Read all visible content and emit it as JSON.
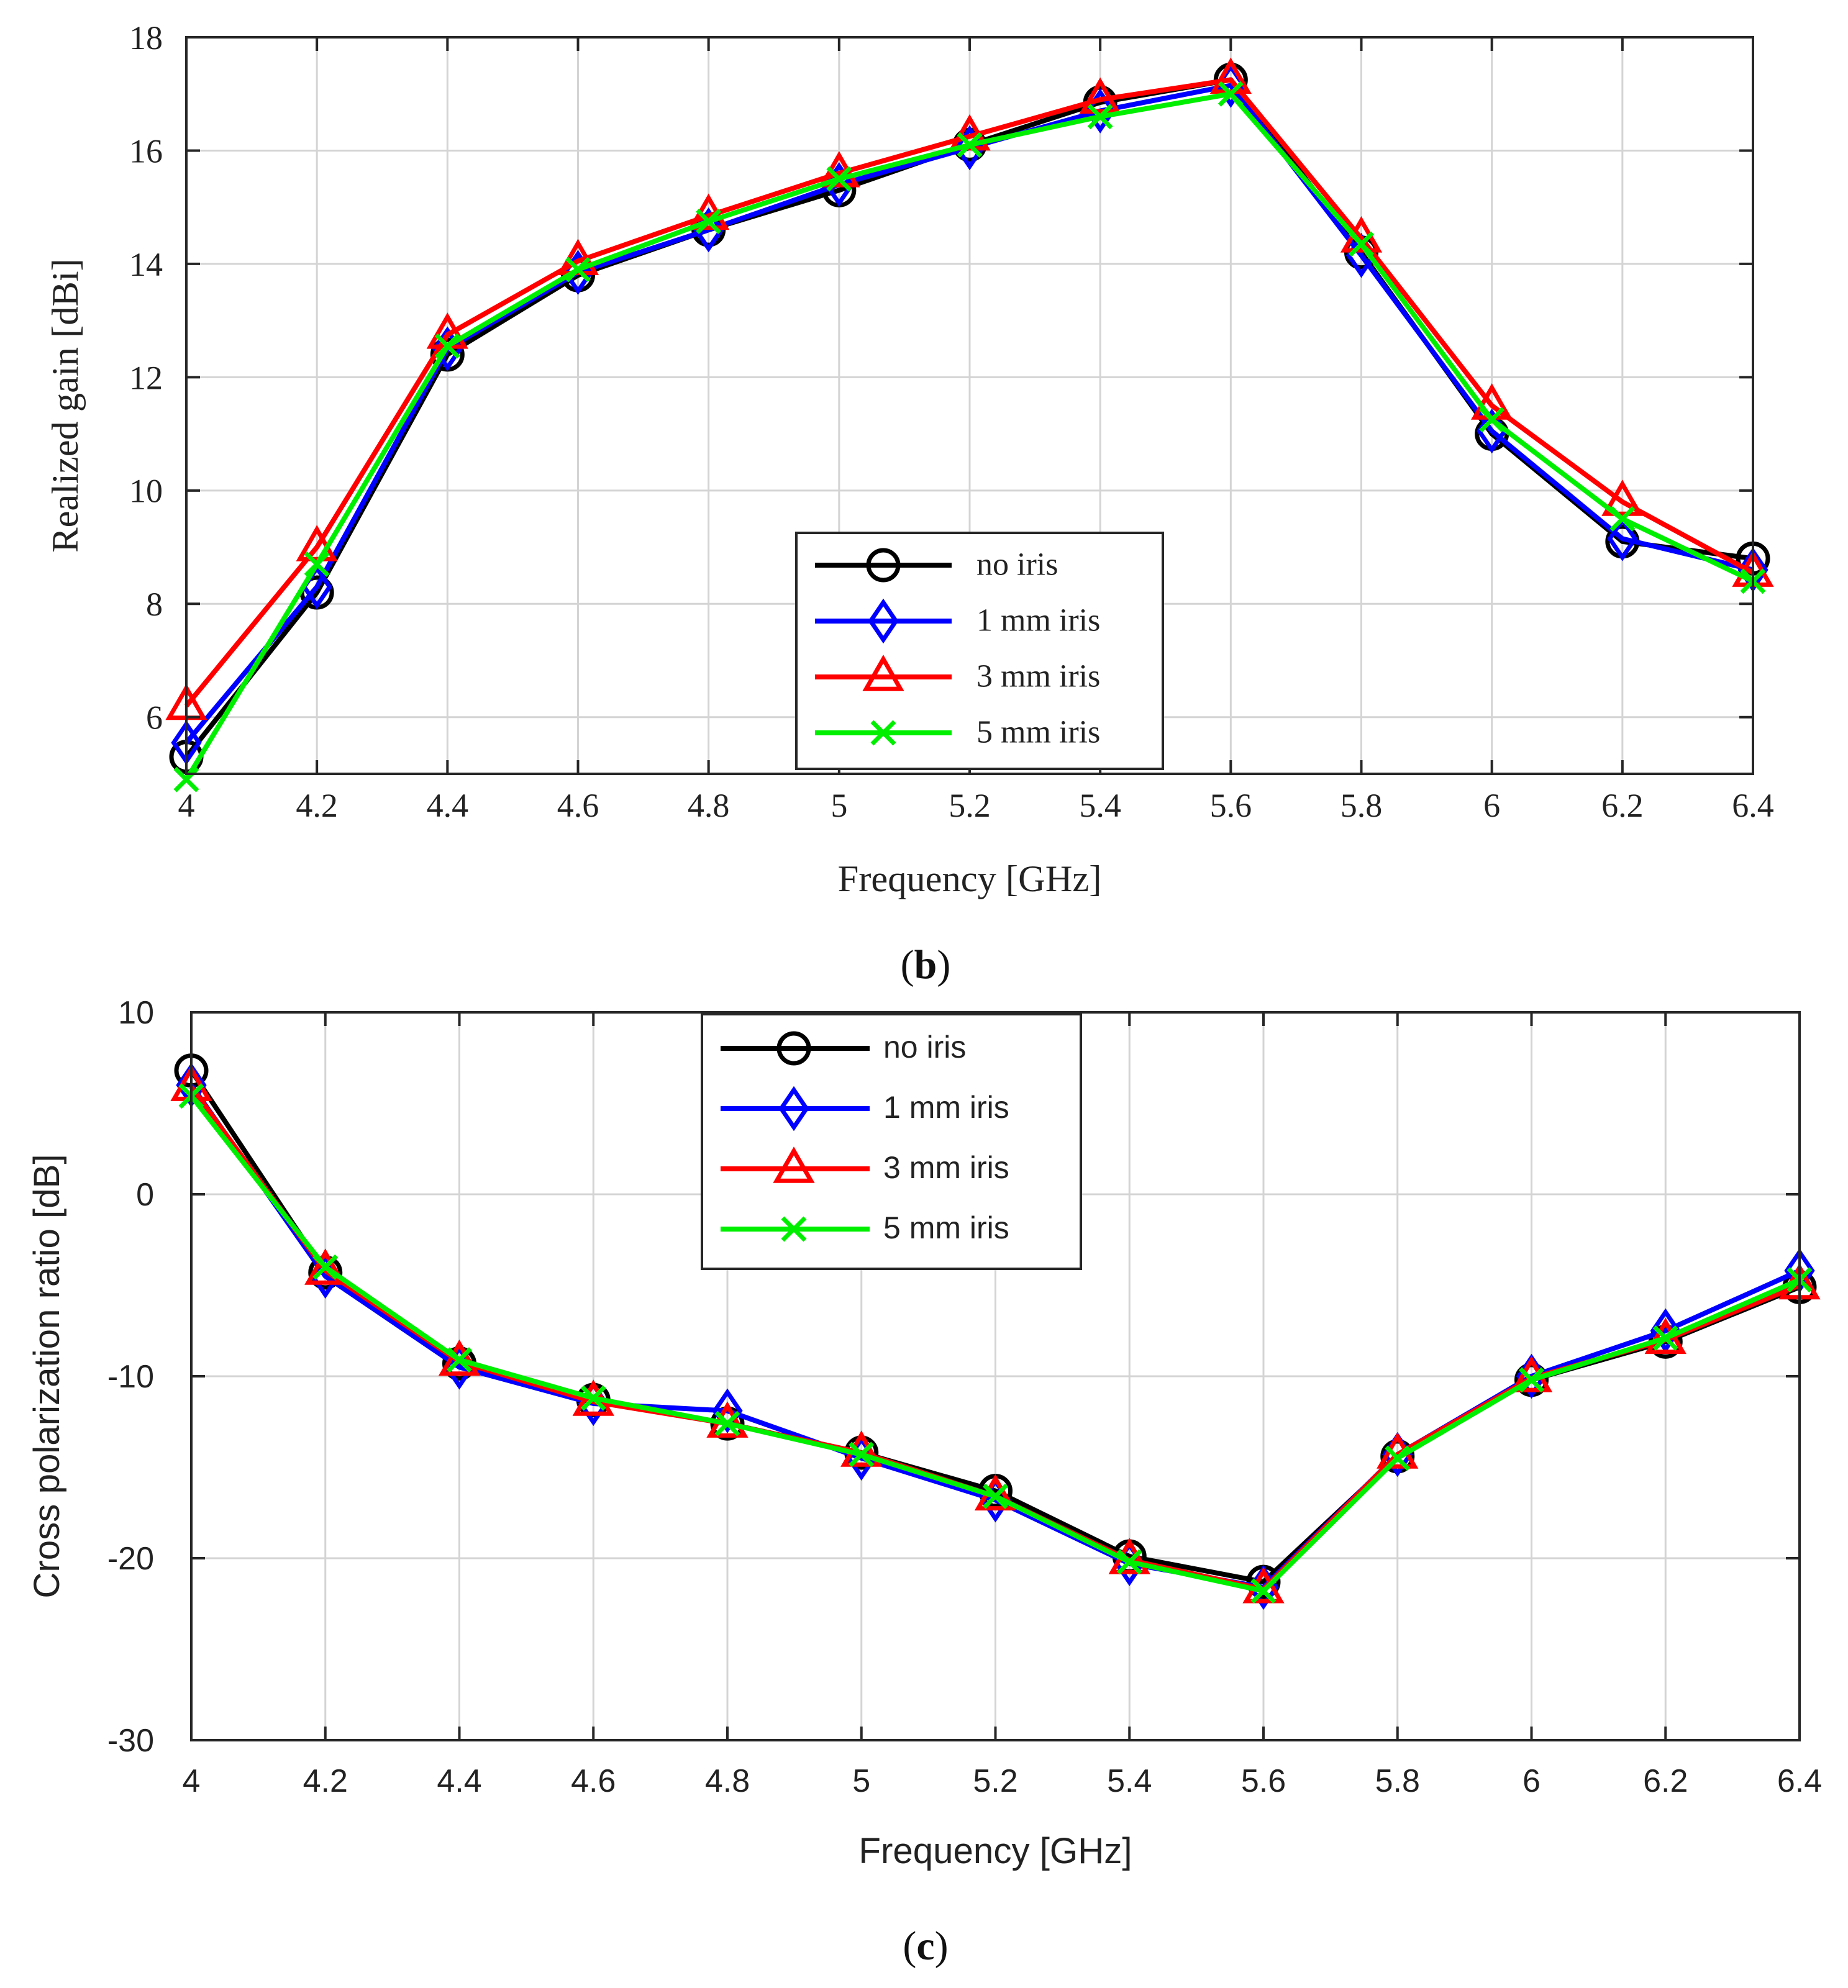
{
  "chart_data": [
    {
      "type": "line",
      "panel_label": "(b)",
      "title": "",
      "xlabel": "Frequency [GHz]",
      "ylabel": "Realized gain [dBi]",
      "xlim": [
        4,
        6.4
      ],
      "ylim": [
        5,
        18
      ],
      "x_ticks": [
        "4",
        "4.2",
        "4.4",
        "4.6",
        "4.8",
        "5",
        "5.2",
        "5.4",
        "5.6",
        "5.8",
        "6",
        "6.2",
        "6.4"
      ],
      "y_ticks": [
        "6",
        "8",
        "10",
        "12",
        "14",
        "16",
        "18"
      ],
      "grid": true,
      "legend_position": "lower-center",
      "x": [
        4,
        4.2,
        4.4,
        4.6,
        4.8,
        5,
        5.2,
        5.4,
        5.6,
        5.8,
        6,
        6.2,
        6.4
      ],
      "series": [
        {
          "name": "no iris",
          "color": "#000000",
          "marker": "circle",
          "values": [
            5.3,
            8.2,
            12.4,
            13.8,
            14.6,
            15.3,
            16.1,
            16.85,
            17.25,
            14.2,
            11.0,
            9.1,
            8.8
          ]
        },
        {
          "name": "1 mm iris",
          "color": "#0000ff",
          "marker": "diamond",
          "values": [
            5.55,
            8.3,
            12.5,
            13.85,
            14.6,
            15.4,
            16.05,
            16.7,
            17.15,
            14.15,
            11.05,
            9.15,
            8.6
          ]
        },
        {
          "name": "3 mm iris",
          "color": "#ff0000",
          "marker": "triangle",
          "values": [
            6.2,
            9.0,
            12.75,
            14.05,
            14.85,
            15.6,
            16.25,
            16.9,
            17.25,
            14.45,
            11.5,
            9.8,
            8.55
          ]
        },
        {
          "name": "5 mm iris",
          "color": "#00ee00",
          "marker": "x",
          "values": [
            4.9,
            8.7,
            12.55,
            13.9,
            14.75,
            15.5,
            16.1,
            16.6,
            17.0,
            14.35,
            11.25,
            9.5,
            8.4
          ]
        }
      ]
    },
    {
      "type": "line",
      "panel_label": "(c)",
      "title": "",
      "xlabel": "Frequency [GHz]",
      "ylabel": "Cross polarization ratio [dB]",
      "xlim": [
        4,
        6.4
      ],
      "ylim": [
        -30,
        10
      ],
      "x_ticks": [
        "4",
        "4.2",
        "4.4",
        "4.6",
        "4.8",
        "5",
        "5.2",
        "5.4",
        "5.6",
        "5.8",
        "6",
        "6.2",
        "6.4"
      ],
      "y_ticks": [
        "-30",
        "-20",
        "-10",
        "0",
        "10"
      ],
      "grid": true,
      "legend_position": "top-center",
      "x": [
        4,
        4.2,
        4.4,
        4.6,
        4.8,
        5,
        5.2,
        5.4,
        5.6,
        5.8,
        6,
        6.2,
        6.4
      ],
      "series": [
        {
          "name": "no iris",
          "color": "#000000",
          "marker": "circle",
          "values": [
            6.8,
            -4.3,
            -9.3,
            -11.3,
            -12.6,
            -14.2,
            -16.3,
            -19.9,
            -21.3,
            -14.4,
            -10.2,
            -8.1,
            -5.1
          ]
        },
        {
          "name": "1 mm iris",
          "color": "#0000ff",
          "marker": "diamond",
          "values": [
            6.0,
            -4.5,
            -9.5,
            -11.5,
            -11.9,
            -14.5,
            -16.8,
            -20.3,
            -21.6,
            -14.3,
            -10.0,
            -7.5,
            -4.2
          ]
        },
        {
          "name": "3 mm iris",
          "color": "#ff0000",
          "marker": "triangle",
          "values": [
            5.9,
            -4.2,
            -9.2,
            -11.4,
            -12.6,
            -14.2,
            -16.6,
            -20.1,
            -21.7,
            -14.3,
            -10.1,
            -8.0,
            -5.0
          ]
        },
        {
          "name": "5 mm iris",
          "color": "#00ee00",
          "marker": "x",
          "values": [
            5.4,
            -4.0,
            -9.1,
            -11.2,
            -12.6,
            -14.3,
            -16.6,
            -20.2,
            -21.8,
            -14.5,
            -10.2,
            -7.9,
            -4.7
          ]
        }
      ]
    }
  ]
}
